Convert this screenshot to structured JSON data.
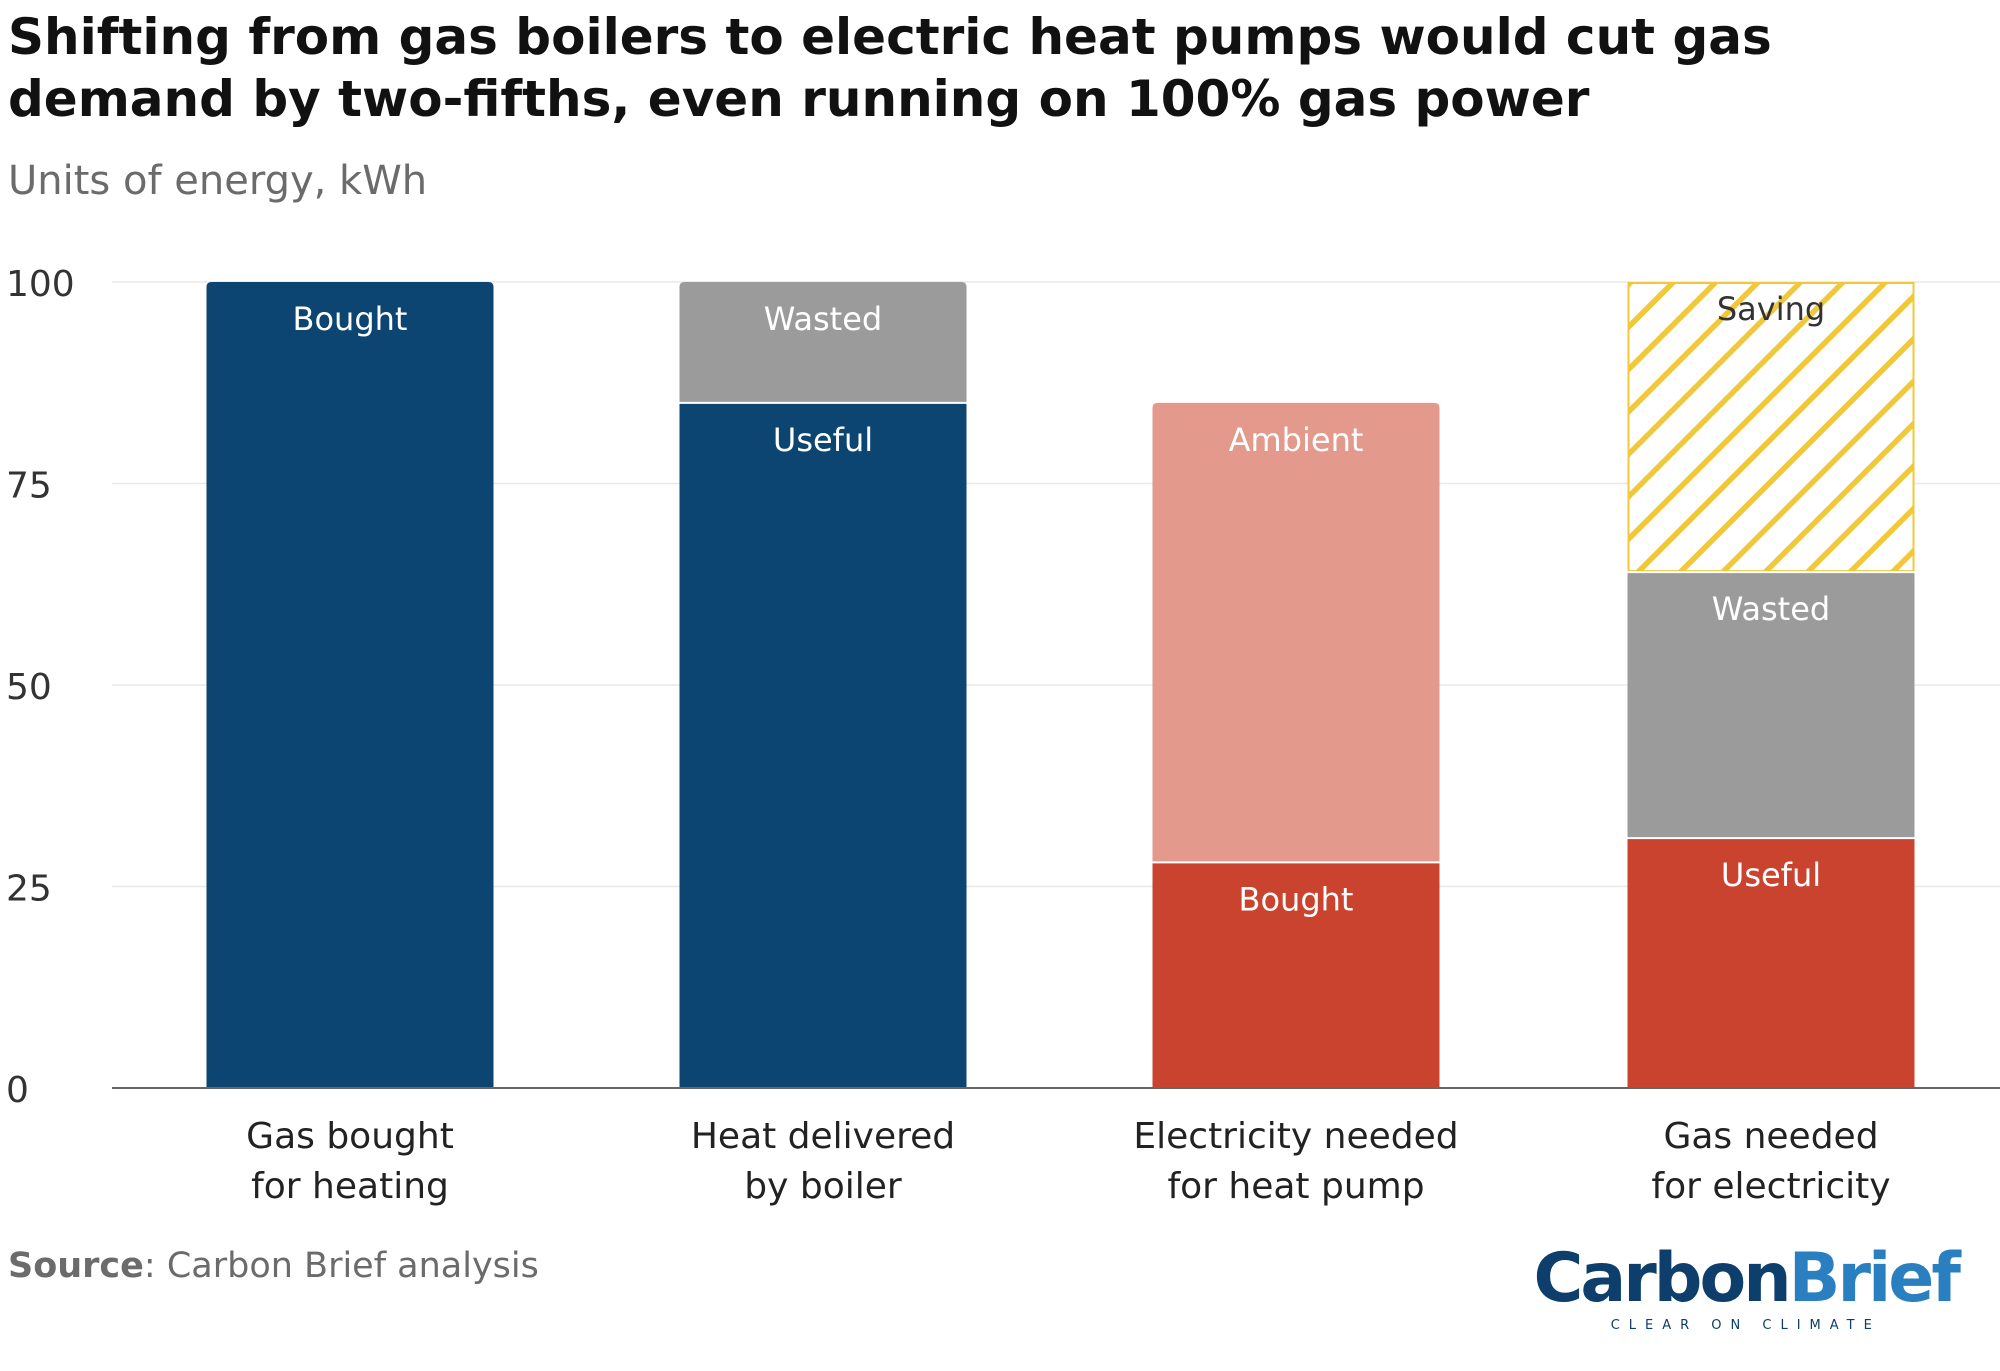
{
  "title": "Shifting from gas boilers to electric heat pumps would cut gas demand by two-fifths, even running on 100% gas power",
  "subtitle": "Units of energy, kWh",
  "source": {
    "label": "Source",
    "text": ": Carbon Brief analysis"
  },
  "logo": {
    "part1": "Carbon",
    "part2": "Brief",
    "tagline": "CLEAR ON CLIMATE"
  },
  "colors": {
    "navy": "#0c4571",
    "grey": "#9b9b9b",
    "red": "#c9432e",
    "pink": "#e3998b",
    "hatch": "#f0c83a"
  },
  "chart_data": {
    "type": "bar",
    "stacked": true,
    "ylim": [
      0,
      100
    ],
    "yticks": [
      0,
      25,
      50,
      75,
      100
    ],
    "grid": true,
    "categories": [
      [
        "Gas bought",
        "for heating"
      ],
      [
        "Heat delivered",
        "by boiler"
      ],
      [
        "Electricity needed",
        "for heat pump"
      ],
      [
        "Gas needed",
        "for electricity"
      ]
    ],
    "bars": [
      {
        "segments": [
          {
            "label": "Bought",
            "value": 100,
            "color": "navy"
          }
        ]
      },
      {
        "segments": [
          {
            "label": "Useful",
            "value": 85,
            "color": "navy"
          },
          {
            "label": "Wasted",
            "value": 15,
            "color": "grey"
          }
        ]
      },
      {
        "segments": [
          {
            "label": "Bought",
            "value": 28,
            "color": "red"
          },
          {
            "label": "Ambient",
            "value": 57,
            "color": "pink"
          }
        ]
      },
      {
        "segments": [
          {
            "label": "Useful",
            "value": 31,
            "color": "red"
          },
          {
            "label": "Wasted",
            "value": 33,
            "color": "grey"
          },
          {
            "label": "Saving",
            "value": 36,
            "color": "hatch",
            "pattern": "hatch"
          }
        ]
      }
    ]
  }
}
